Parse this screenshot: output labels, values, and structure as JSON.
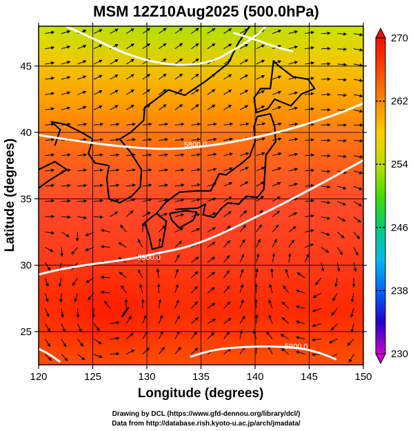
{
  "chart_data": {
    "type": "heatmap",
    "title": "MSM 12Z10Aug2025 (500.0hPa)",
    "xlabel": "Longitude (degrees)",
    "ylabel": "Latitude  (degrees)",
    "xlim": [
      120,
      150
    ],
    "ylim": [
      22.5,
      48
    ],
    "xticks": [
      120,
      125,
      130,
      135,
      140,
      145,
      150
    ],
    "xtick_labels": [
      "120",
      "125",
      "130",
      "135",
      "140",
      "145",
      "150"
    ],
    "yticks": [
      25,
      30,
      35,
      40,
      45
    ],
    "ytick_labels": [
      "25",
      "30",
      "35",
      "40",
      "45"
    ],
    "grid": true,
    "colorbar": {
      "min": 230,
      "max": 270,
      "ticks": [
        230,
        238,
        246,
        254,
        262,
        270
      ],
      "tick_labels": [
        "230",
        "238",
        "246",
        "254",
        "262",
        "270"
      ],
      "colors": [
        "#cc00cc",
        "#2200cc",
        "#0066ff",
        "#00bbee",
        "#00cc77",
        "#44dd00",
        "#bbdd00",
        "#ffcc00",
        "#ff8800",
        "#ff4400",
        "#ee1100"
      ]
    },
    "contours": [
      {
        "label": "5800.0",
        "label_pos": [
          134.5,
          39.1
        ],
        "points": [
          [
            120,
            39.8
          ],
          [
            124,
            39.3
          ],
          [
            128,
            38.9
          ],
          [
            132,
            38.7
          ],
          [
            136,
            39.0
          ],
          [
            140,
            39.6
          ],
          [
            144,
            40.4
          ],
          [
            148,
            41.5
          ],
          [
            150,
            42.2
          ]
        ]
      },
      {
        "label": "5900.0",
        "label_pos": [
          130.2,
          30.6
        ],
        "points": [
          [
            120,
            29.3
          ],
          [
            122,
            29.7
          ],
          [
            125,
            30.1
          ],
          [
            128,
            30.4
          ],
          [
            131,
            30.9
          ],
          [
            134,
            31.4
          ],
          [
            137,
            32.4
          ],
          [
            140,
            33.6
          ],
          [
            143,
            34.8
          ],
          [
            146,
            36.1
          ],
          [
            148,
            37.0
          ],
          [
            150,
            37.9
          ]
        ]
      },
      {
        "label": "5900.0",
        "label_pos": [
          143.8,
          23.9
        ],
        "points": [
          [
            134,
            23.1
          ],
          [
            136,
            23.6
          ],
          [
            138,
            23.8
          ],
          [
            141,
            23.9
          ],
          [
            144,
            23.8
          ],
          [
            146,
            23.4
          ],
          [
            147.5,
            22.9
          ]
        ]
      },
      {
        "label": "",
        "label_pos": null,
        "points": [
          [
            120,
            23.7
          ],
          [
            121,
            23.3
          ],
          [
            122,
            22.7
          ]
        ]
      },
      {
        "label": "",
        "label_pos": null,
        "points": [
          [
            122.5,
            48
          ],
          [
            125,
            47.1
          ],
          [
            127.5,
            46.1
          ],
          [
            130,
            45.4
          ],
          [
            133,
            45.0
          ],
          [
            136,
            45.3
          ],
          [
            138,
            46.2
          ],
          [
            140,
            47.2
          ],
          [
            141,
            48
          ]
        ]
      },
      {
        "label": "",
        "label_pos": null,
        "points": [
          [
            138,
            47.5
          ],
          [
            140,
            47.0
          ],
          [
            142,
            46.4
          ],
          [
            143.5,
            46.1
          ]
        ]
      }
    ],
    "credits": [
      "Drawing by DCL (https://www.gfd-dennou.org/library/dcl/)",
      "Data from http://database.rish.kyoto-u.ac.jp/arch/jmadata/"
    ]
  }
}
